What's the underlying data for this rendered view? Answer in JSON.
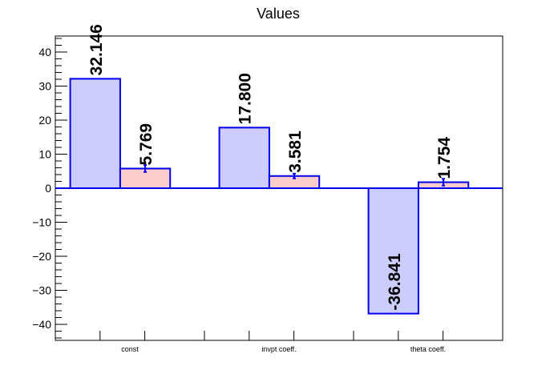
{
  "chart_data": {
    "type": "bar",
    "title": "Values",
    "categories": [
      "const",
      "invpt coeff.",
      "theta coeff."
    ],
    "series": [
      {
        "values": [
          32.146,
          17.8,
          -36.841
        ],
        "labels": [
          "32.146",
          "17.800",
          "-36.841"
        ],
        "fill": "#ccccff",
        "stroke": "#0000ee"
      },
      {
        "values": [
          5.769,
          3.581,
          1.754
        ],
        "labels": [
          "5.769",
          "3.581",
          "1.754"
        ],
        "errors": [
          1.0,
          0.7,
          1.0
        ],
        "fill": "#ffcccc",
        "stroke": "#0000ee"
      }
    ],
    "ylim": [
      -44.7,
      44.7
    ],
    "yticks": [
      -40,
      -30,
      -20,
      -10,
      0,
      10,
      20,
      30,
      40
    ],
    "ytick_labels": [
      "−40",
      "−30",
      "−20",
      "−10",
      "0",
      "10",
      "20",
      "30",
      "40"
    ],
    "xlabel": "",
    "ylabel": "",
    "grid": false,
    "legend": "none"
  }
}
